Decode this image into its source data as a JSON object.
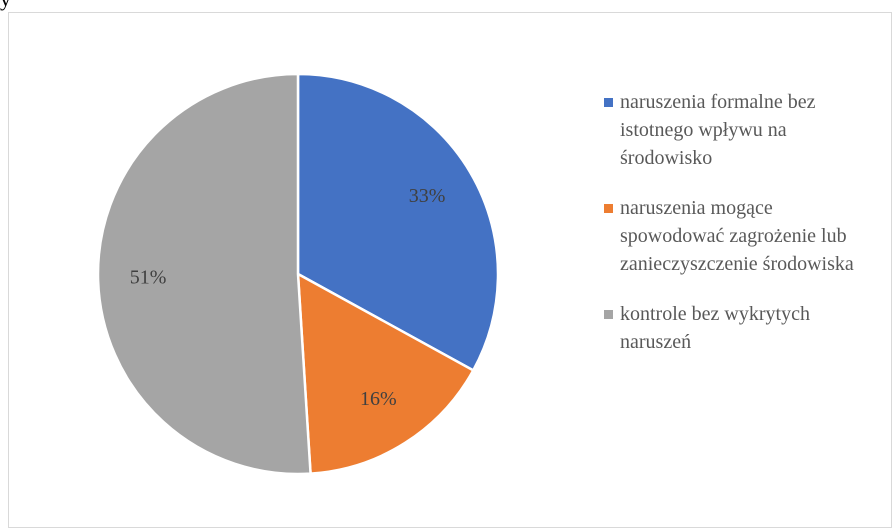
{
  "fragment": "y",
  "chart_data": {
    "type": "pie",
    "categories": [
      "naruszenia formalne bez istotnego wpływu na środowisko",
      "naruszenia mogące spowodować zagrożenie lub zanieczyszczenie środowiska",
      "kontrole bez wykrytych naruszeń"
    ],
    "values": [
      33,
      16,
      51
    ],
    "value_labels": [
      "33%",
      "16%",
      "51%"
    ],
    "colors": [
      "#4472c4",
      "#ed7d31",
      "#a5a5a5"
    ],
    "legend": "right"
  }
}
